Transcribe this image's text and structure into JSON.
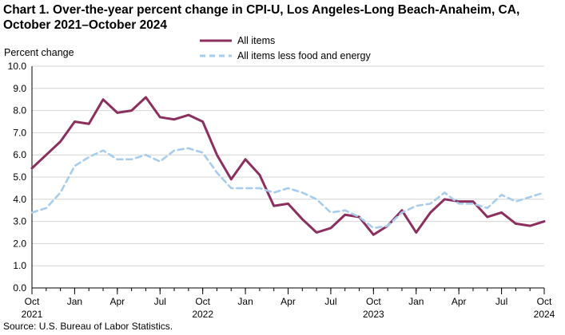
{
  "chart_data": {
    "type": "line",
    "title_line1": "Chart 1. Over-the-year percent change in CPI-U, Los Angeles-Long  Beach-Anaheim,  CA,",
    "title_line2": "October 2021–October 2024",
    "ylabel": "Percent change",
    "ylim": [
      0,
      10
    ],
    "y_ticks": [
      "0.0",
      "1.0",
      "2.0",
      "3.0",
      "4.0",
      "5.0",
      "6.0",
      "7.0",
      "8.0",
      "9.0",
      "10.0"
    ],
    "x_ticks": [
      {
        "month": "Oct",
        "year": "2021",
        "index": 0
      },
      {
        "month": "Jan",
        "year": "",
        "index": 3
      },
      {
        "month": "Apr",
        "year": "",
        "index": 6
      },
      {
        "month": "Jul",
        "year": "",
        "index": 9
      },
      {
        "month": "Oct",
        "year": "2022",
        "index": 12
      },
      {
        "month": "Jan",
        "year": "",
        "index": 15
      },
      {
        "month": "Apr",
        "year": "",
        "index": 18
      },
      {
        "month": "Jul",
        "year": "",
        "index": 21
      },
      {
        "month": "Oct",
        "year": "2023",
        "index": 24
      },
      {
        "month": "Jan",
        "year": "",
        "index": 27
      },
      {
        "month": "Apr",
        "year": "",
        "index": 30
      },
      {
        "month": "Jul",
        "year": "",
        "index": 33
      },
      {
        "month": "Oct",
        "year": "2024",
        "index": 36
      }
    ],
    "n_points": 37,
    "series": [
      {
        "name": "All items",
        "color": "#8b2f5f",
        "style": "solid",
        "values": [
          5.4,
          6.0,
          6.6,
          7.5,
          7.4,
          8.5,
          7.9,
          8.0,
          8.6,
          7.7,
          7.6,
          7.8,
          7.5,
          6.0,
          4.9,
          5.8,
          5.1,
          3.7,
          3.8,
          3.1,
          2.5,
          2.7,
          3.3,
          3.2,
          2.4,
          2.8,
          3.5,
          2.5,
          3.4,
          4.0,
          3.9,
          3.9,
          3.2,
          3.4,
          2.9,
          2.8,
          3.0
        ]
      },
      {
        "name": "All items less food and energy",
        "color": "#a6cdee",
        "style": "dashed",
        "values": [
          3.4,
          3.6,
          4.3,
          5.5,
          5.9,
          6.2,
          5.8,
          5.8,
          6.0,
          5.7,
          6.2,
          6.3,
          6.1,
          5.2,
          4.5,
          4.5,
          4.5,
          4.3,
          4.5,
          4.3,
          4.0,
          3.4,
          3.5,
          3.2,
          2.7,
          2.8,
          3.4,
          3.7,
          3.8,
          4.3,
          3.8,
          3.8,
          3.6,
          4.2,
          3.9,
          4.1,
          4.3
        ]
      }
    ],
    "grid": true,
    "legend_position": "top-center"
  },
  "source": "Source: U.S. Bureau of Labor Statistics."
}
